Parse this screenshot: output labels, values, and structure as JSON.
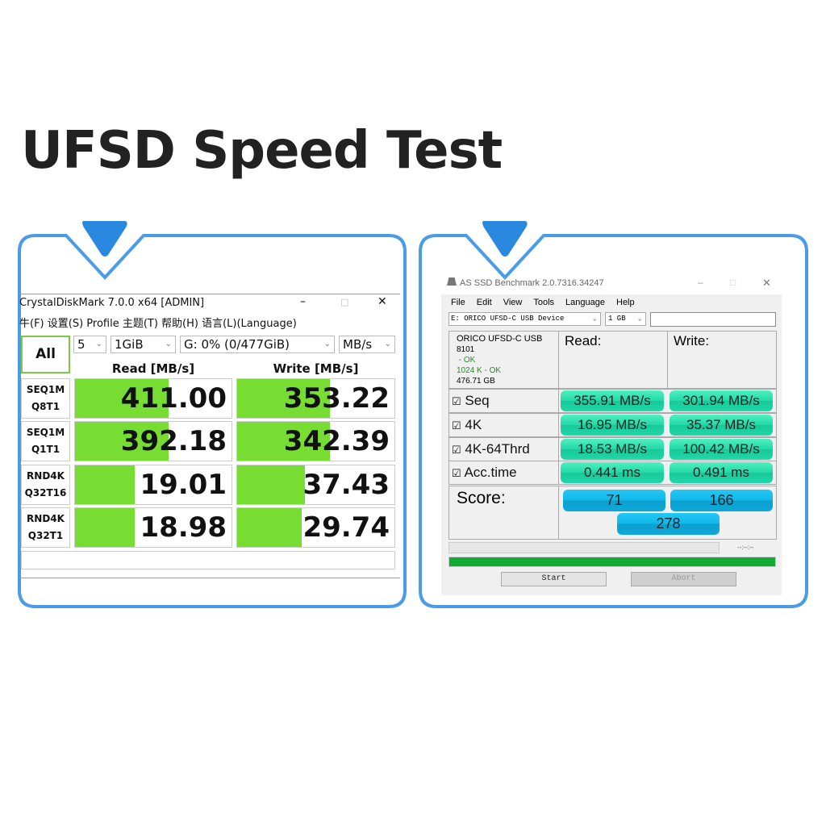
{
  "heading": "UFSD Speed Test",
  "colors": {
    "frame": "#4a9be8",
    "bar_green": "#77dd33",
    "assd_green": "#22d8a8",
    "assd_blue": "#10b8ea",
    "progress": "#11aa33"
  },
  "cdm": {
    "title": "CrystalDiskMark 7.0.0 x64 [ADMIN]",
    "menu": "牛(F) 设置(S) Profile 主题(T) 帮助(H) 语言(L)(Language)",
    "all_label": "All",
    "count": "5",
    "size": "1GiB",
    "drive": "G: 0% (0/477GiB)",
    "unit": "MB/s",
    "read_header": "Read [MB/s]",
    "write_header": "Write [MB/s]",
    "rows": [
      {
        "l1": "SEQ1M",
        "l2": "Q8T1",
        "read": "411.00",
        "write": "353.22",
        "read_fill": 0.6,
        "write_fill": 0.59
      },
      {
        "l1": "SEQ1M",
        "l2": "Q1T1",
        "read": "392.18",
        "write": "342.39",
        "read_fill": 0.6,
        "write_fill": 0.59
      },
      {
        "l1": "RND4K",
        "l2": "Q32T16",
        "read": "19.01",
        "write": "37.43",
        "read_fill": 0.38,
        "write_fill": 0.43
      },
      {
        "l1": "RND4K",
        "l2": "Q32T1",
        "read": "18.98",
        "write": "29.74",
        "read_fill": 0.38,
        "write_fill": 0.41
      }
    ]
  },
  "assd": {
    "title": "AS SSD Benchmark 2.0.7316.34247",
    "menu": [
      "File",
      "Edit",
      "View",
      "Tools",
      "Language",
      "Help"
    ],
    "device": "E: ORICO UFSD-C USB Device",
    "size": "1 GB",
    "info": {
      "name": "ORICO UFSD-C USB",
      "fw": "8101",
      "ok1": " - OK",
      "ok2": "1024 K - OK",
      "capacity": "476.71 GB"
    },
    "read_header": "Read:",
    "write_header": "Write:",
    "rows": [
      {
        "label": "Seq",
        "read": "355.91 MB/s",
        "write": "301.94 MB/s"
      },
      {
        "label": "4K",
        "read": "16.95 MB/s",
        "write": "35.37 MB/s"
      },
      {
        "label": "4K-64Thrd",
        "read": "18.53 MB/s",
        "write": "100.42 MB/s"
      },
      {
        "label": "Acc.time",
        "read": "0.441 ms",
        "write": "0.491 ms"
      }
    ],
    "score_label": "Score:",
    "score_read": "71",
    "score_write": "166",
    "score_total": "278",
    "time": "--:--:--",
    "progress": 1.0,
    "start": "Start",
    "abort": "Abort"
  }
}
